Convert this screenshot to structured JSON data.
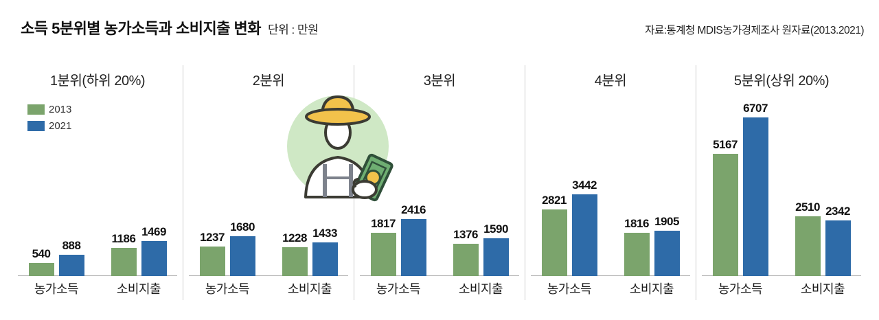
{
  "header": {
    "title": "소득 5분위별 농가소득과 소비지출 변화",
    "unit_label": "단위 : 만원",
    "source": "자료:통계청 MDIS농가경제조사 원자료(2013.2021)"
  },
  "icons": {
    "farmer_money_icon": "farmer holding money banknote inside light green circle"
  },
  "chart_data": {
    "type": "bar",
    "title": "소득 5분위별 농가소득과 소비지출 변화",
    "unit": "만원",
    "source": "자료:통계청 MDIS농가경제조사 원자료(2013.2021)",
    "series": [
      "2013",
      "2021"
    ],
    "series_colors": [
      "#7BA46C",
      "#2E6BA8"
    ],
    "group_labels": [
      "농가소득",
      "소비지출"
    ],
    "ylim": [
      0,
      7000
    ],
    "legend_position": "panel-1 top-left",
    "grid": false,
    "panels": [
      {
        "title": "1분위(하위 20%)",
        "groups": [
          {
            "label": "농가소득",
            "values": [
              540,
              888
            ]
          },
          {
            "label": "소비지출",
            "values": [
              1186,
              1469
            ]
          }
        ]
      },
      {
        "title": "2분위",
        "groups": [
          {
            "label": "농가소득",
            "values": [
              1237,
              1680
            ]
          },
          {
            "label": "소비지출",
            "values": [
              1228,
              1433
            ]
          }
        ]
      },
      {
        "title": "3분위",
        "groups": [
          {
            "label": "농가소득",
            "values": [
              1817,
              2416
            ]
          },
          {
            "label": "소비지출",
            "values": [
              1376,
              1590
            ]
          }
        ]
      },
      {
        "title": "4분위",
        "groups": [
          {
            "label": "농가소득",
            "values": [
              2821,
              3442
            ]
          },
          {
            "label": "소비지출",
            "values": [
              1816,
              1905
            ]
          }
        ]
      },
      {
        "title": "5분위(상위 20%)",
        "groups": [
          {
            "label": "농가소득",
            "values": [
              5167,
              6707
            ]
          },
          {
            "label": "소비지출",
            "values": [
              2510,
              2342
            ]
          }
        ]
      }
    ]
  }
}
